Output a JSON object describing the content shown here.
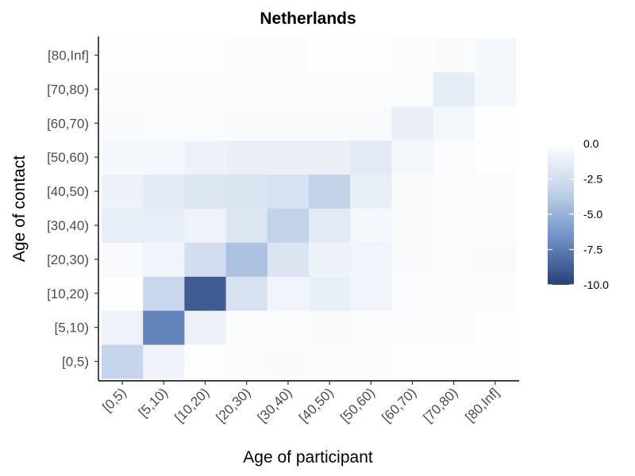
{
  "chart_data": {
    "type": "heatmap",
    "title": "Netherlands",
    "xlabel": "Age of participant",
    "ylabel": "Age of contact",
    "x_categories": [
      "[0,5)",
      "[5,10)",
      "[10,20)",
      "[20,30)",
      "[30,40)",
      "[40,50)",
      "[50,60)",
      "[60,70)",
      "[70,80)",
      "[80,Inf]"
    ],
    "y_categories": [
      "[0,5)",
      "[5,10)",
      "[10,20)",
      "[20,30)",
      "[30,40)",
      "[40,50)",
      "[50,60)",
      "[60,70)",
      "[70,80)",
      "[80,Inf]"
    ],
    "values": [
      [
        -3.2,
        -0.9,
        -0.1,
        -0.3,
        -0.4,
        -0.3,
        -0.2,
        -0.1,
        -0.1,
        -0.1
      ],
      [
        -0.9,
        -7.2,
        -1.0,
        -0.3,
        -0.3,
        -0.4,
        -0.2,
        -0.2,
        -0.2,
        -0.1
      ],
      [
        -0.1,
        -3.0,
        -8.9,
        -2.2,
        -0.8,
        -1.2,
        -0.8,
        -0.3,
        -0.2,
        -0.2
      ],
      [
        -0.4,
        -0.8,
        -2.5,
        -4.2,
        -2.0,
        -1.0,
        -0.8,
        -0.4,
        -0.3,
        -0.4
      ],
      [
        -1.3,
        -1.3,
        -0.9,
        -1.9,
        -3.4,
        -1.6,
        -0.6,
        -0.4,
        -0.3,
        -0.3
      ],
      [
        -1.0,
        -1.6,
        -1.9,
        -2.0,
        -2.3,
        -3.4,
        -1.2,
        -0.4,
        -0.3,
        -0.3
      ],
      [
        -0.6,
        -0.6,
        -1.0,
        -1.1,
        -1.1,
        -1.1,
        -1.6,
        -0.6,
        -0.2,
        -0.1
      ],
      [
        -0.4,
        -0.3,
        -0.3,
        -0.4,
        -0.4,
        -0.4,
        -0.4,
        -1.1,
        -0.6,
        -0.1
      ],
      [
        -0.2,
        -0.2,
        -0.2,
        -0.2,
        -0.2,
        -0.2,
        -0.2,
        -0.3,
        -1.4,
        -0.6
      ],
      [
        -0.1,
        -0.1,
        -0.1,
        -0.2,
        -0.2,
        -0.1,
        -0.1,
        -0.2,
        -0.4,
        -0.6
      ]
    ],
    "scale": {
      "min": -10.0,
      "max": 0.0,
      "breaks": [
        0.0,
        -2.5,
        -5.0,
        -7.5,
        -10.0
      ],
      "break_labels": [
        "0.0",
        "-2.5",
        "-5.0",
        "-7.5",
        "-10.0"
      ],
      "colors": [
        "#ffffff",
        "#c3d3ea",
        "#6e91c8",
        "#2a3f78"
      ]
    },
    "legend_position": "right",
    "grid": false
  }
}
